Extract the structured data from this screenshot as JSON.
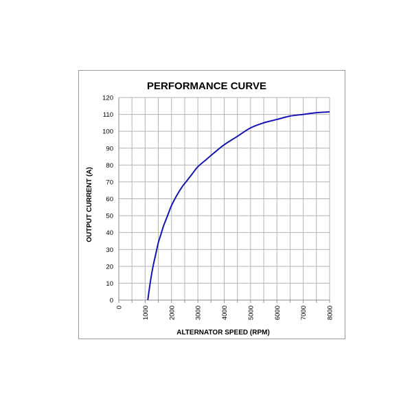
{
  "chart_data": {
    "type": "line",
    "title": "PERFORMANCE CURVE",
    "xlabel": "ALTERNATOR SPEED (RPM)",
    "ylabel": "OUTPUT CURRENT (A)",
    "xlim": [
      0,
      8000
    ],
    "ylim": [
      0,
      120
    ],
    "x_ticks": [
      0,
      1000,
      2000,
      3000,
      4000,
      5000,
      6000,
      7000,
      8000
    ],
    "y_ticks": [
      0,
      10,
      20,
      30,
      40,
      50,
      60,
      70,
      80,
      90,
      100,
      110,
      120
    ],
    "x_minor_step": 500,
    "grid": true,
    "series": [
      {
        "color": "#1414b4",
        "x": [
          1100,
          1200,
          1300,
          1400,
          1500,
          1600,
          1700,
          1800,
          1900,
          2000,
          2200,
          2400,
          2600,
          2800,
          3000,
          3300,
          3600,
          4000,
          4500,
          5000,
          5500,
          6000,
          6500,
          7000,
          7500,
          8000
        ],
        "y": [
          0,
          11,
          20,
          27,
          34,
          39,
          44,
          48,
          52,
          56,
          62,
          67,
          71,
          75,
          79,
          83,
          87,
          92,
          97,
          102,
          105,
          107,
          109,
          110,
          111,
          111.5
        ]
      }
    ]
  }
}
